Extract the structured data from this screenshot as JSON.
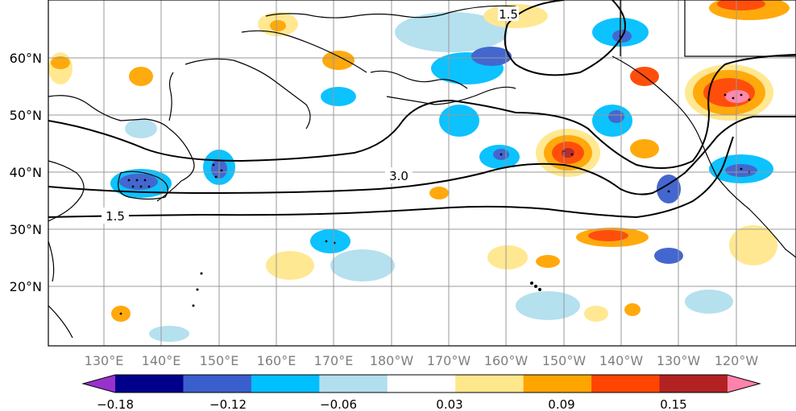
{
  "map": {
    "lat_labels": [
      "60°N",
      "50°N",
      "40°N",
      "30°N",
      "20°N"
    ],
    "lon_labels": [
      "130°E",
      "140°E",
      "150°E",
      "160°E",
      "170°E",
      "180°W",
      "170°W",
      "160°W",
      "150°W",
      "140°W",
      "130°W",
      "120°W"
    ],
    "contour_labels": [
      "3.0",
      "1.5",
      "1.5"
    ]
  },
  "colorbar": {
    "colors": [
      "#9932cc",
      "#00008b",
      "#3a5fcd",
      "#00bfff",
      "#b2dfee",
      "#ffffff",
      "#ffe78c",
      "#ffa500",
      "#ff4500",
      "#b22222",
      "#ff82ab"
    ],
    "tick_labels": [
      "−0.18",
      "−0.12",
      "−0.06",
      "0.03",
      "0.09",
      "0.15"
    ]
  }
}
